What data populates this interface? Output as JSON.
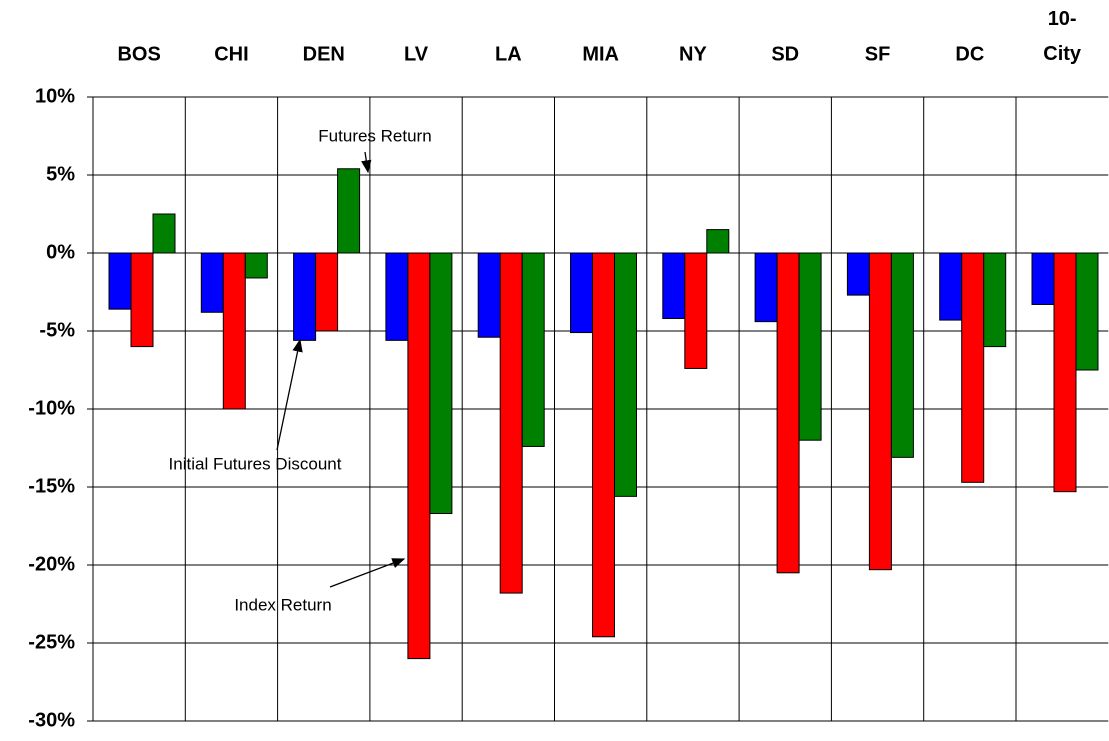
{
  "chart_data": {
    "type": "bar",
    "categories": [
      "BOS",
      "CHI",
      "DEN",
      "LV",
      "LA",
      "MIA",
      "NY",
      "SD",
      "SF",
      "DC",
      "10-City"
    ],
    "series": [
      {
        "name": "Initial Futures Discount",
        "color": "#0000ff",
        "values": [
          -3.6,
          -3.8,
          -5.6,
          -5.6,
          -5.4,
          -5.1,
          -4.2,
          -4.4,
          -2.7,
          -4.3,
          -3.3
        ]
      },
      {
        "name": "Index Return",
        "color": "#ff0000",
        "values": [
          -6.0,
          -10.0,
          -5.0,
          -26.0,
          -21.8,
          -24.6,
          -7.4,
          -20.5,
          -20.3,
          -14.7,
          -15.3
        ]
      },
      {
        "name": "Futures Return",
        "color": "#008000",
        "values": [
          2.5,
          -1.6,
          5.4,
          -16.7,
          -12.4,
          -15.6,
          1.5,
          -12.0,
          -13.1,
          -6.0,
          -7.5
        ]
      }
    ],
    "ylim": [
      -30,
      10
    ],
    "yticks": [
      {
        "value": -30,
        "label": "-30%"
      },
      {
        "value": -25,
        "label": "-25%"
      },
      {
        "value": -20,
        "label": "-20%"
      },
      {
        "value": -15,
        "label": "-15%"
      },
      {
        "value": -10,
        "label": "-10%"
      },
      {
        "value": -5,
        "label": "-5%"
      },
      {
        "value": 0,
        "label": "0%"
      },
      {
        "value": 5,
        "label": "5%"
      },
      {
        "value": 10,
        "label": "10%"
      }
    ],
    "grid": true
  }
}
